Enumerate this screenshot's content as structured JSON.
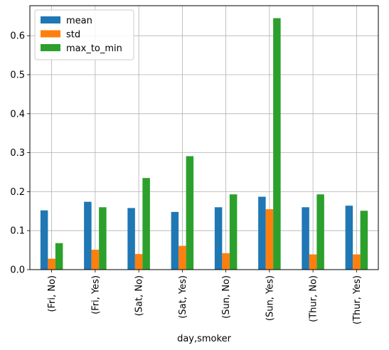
{
  "chart_data": {
    "type": "bar",
    "categories": [
      "(Fri, No)",
      "(Fri, Yes)",
      "(Sat, No)",
      "(Sat, Yes)",
      "(Sun, No)",
      "(Sun, Yes)",
      "(Thur, No)",
      "(Thur, Yes)"
    ],
    "series": [
      {
        "name": "mean",
        "color": "#1f77b4",
        "values": [
          0.152,
          0.174,
          0.158,
          0.148,
          0.16,
          0.187,
          0.16,
          0.164
        ]
      },
      {
        "name": "std",
        "color": "#ff7f0e",
        "values": [
          0.028,
          0.051,
          0.04,
          0.061,
          0.042,
          0.155,
          0.039,
          0.039
        ]
      },
      {
        "name": "max_to_min",
        "color": "#2ca02c",
        "values": [
          0.068,
          0.16,
          0.235,
          0.291,
          0.193,
          0.645,
          0.193,
          0.151
        ]
      }
    ],
    "title": "",
    "xlabel": "day,smoker",
    "ylabel": "",
    "ylim": [
      0,
      0.677
    ],
    "yticks": [
      "0.0",
      "0.1",
      "0.2",
      "0.3",
      "0.4",
      "0.5",
      "0.6"
    ],
    "grid": true,
    "legend_position": "upper-left"
  }
}
